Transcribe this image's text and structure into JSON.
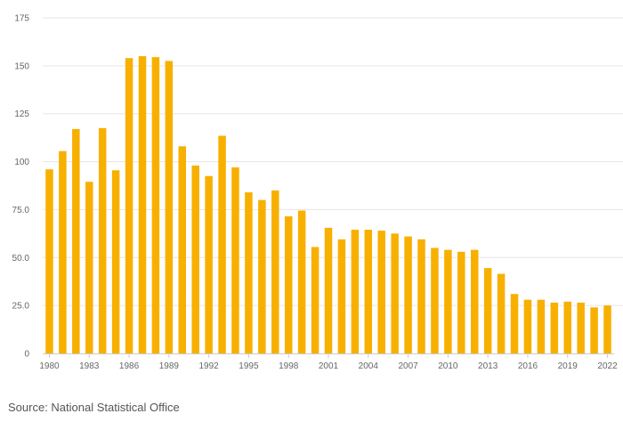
{
  "chart_data": {
    "type": "bar",
    "title": "",
    "xlabel": "",
    "ylabel": "",
    "ylim": [
      0,
      175
    ],
    "grid": true,
    "bar_color": "#F8B000",
    "grid_color": "#e6e6e6",
    "axis_color": "#cccccc",
    "yticks": [
      0,
      25.0,
      50.0,
      75.0,
      100,
      125,
      150,
      175
    ],
    "ytick_labels": [
      "0",
      "25.0",
      "50.0",
      "75.0",
      "100",
      "125",
      "150",
      "175"
    ],
    "xtick_labels": [
      "1980",
      "1983",
      "1986",
      "1989",
      "1992",
      "1995",
      "1998",
      "2001",
      "2004",
      "2007",
      "2010",
      "2013",
      "2016",
      "2019",
      "2022"
    ],
    "categories": [
      "1980",
      "1981",
      "1982",
      "1983",
      "1984",
      "1985",
      "1986",
      "1987",
      "1988",
      "1989",
      "1990",
      "1991",
      "1992",
      "1993",
      "1994",
      "1995",
      "1996",
      "1997",
      "1998",
      "1999",
      "2000",
      "2001",
      "2002",
      "2003",
      "2004",
      "2005",
      "2006",
      "2007",
      "2008",
      "2009",
      "2010",
      "2011",
      "2012",
      "2013",
      "2014",
      "2015",
      "2016",
      "2017",
      "2018",
      "2019",
      "2020",
      "2021",
      "2022"
    ],
    "values": [
      96,
      105.5,
      117,
      89.5,
      117.5,
      95.5,
      154,
      155,
      154.5,
      152.5,
      108,
      98,
      92.5,
      113.5,
      97,
      84,
      80,
      85,
      71.5,
      74.5,
      55.5,
      65.5,
      59.5,
      64.5,
      64.5,
      64,
      62.5,
      61,
      59.5,
      55,
      54,
      53,
      54,
      44.5,
      41.5,
      31,
      28,
      28,
      26.5,
      27,
      26.5,
      24,
      25
    ]
  },
  "source": "Source: National Statistical Office"
}
